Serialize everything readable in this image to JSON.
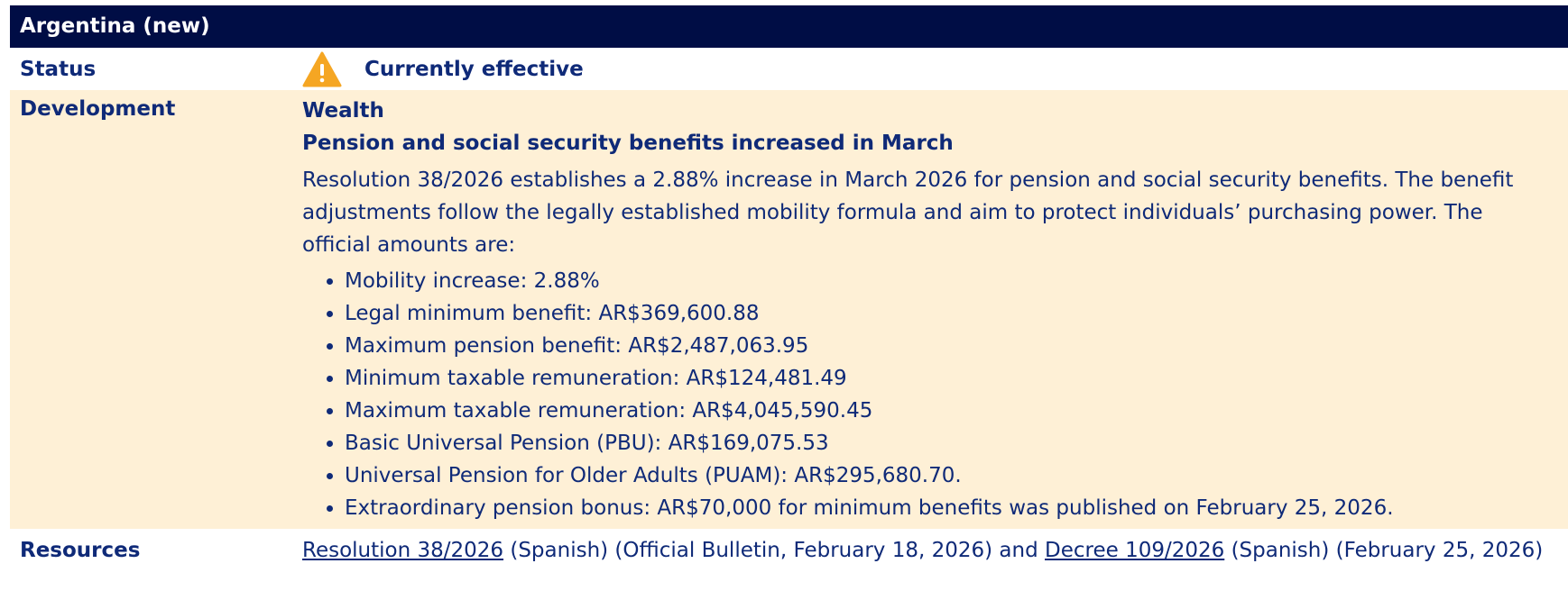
{
  "header": {
    "title": "Argentina (new)"
  },
  "rows": {
    "status": {
      "label": "Status",
      "value": "Currently effective"
    },
    "development": {
      "label": "Development",
      "category": "Wealth",
      "heading": "Pension and social security benefits increased in March",
      "paragraph": "Resolution 38/2026 establishes a 2.88% increase in March 2026 for pension and social security benefits. The benefit adjustments follow the legally established mobility formula and aim to protect individuals’ purchasing power. The official amounts are:",
      "bullets": [
        "Mobility increase: 2.88%",
        "Legal minimum benefit: AR$369,600.88",
        "Maximum pension benefit: AR$2,487,063.95",
        "Minimum taxable remuneration: AR$124,481.49",
        "Maximum taxable remuneration: AR$4,045,590.45",
        "Basic Universal Pension (PBU): AR$169,075.53",
        "Universal Pension for Older Adults (PUAM): AR$295,680.70.",
        "Extraordinary pension bonus: AR$70,000 for minimum benefits was published on February 25, 2026."
      ]
    },
    "resources": {
      "label": "Resources",
      "parts": [
        "Resolution 38/2026",
        " (Spanish) (Official Bulletin, February 18, 2026) and ",
        "Decree 109/2026",
        " (Spanish) (February 25, 2026)"
      ]
    }
  }
}
